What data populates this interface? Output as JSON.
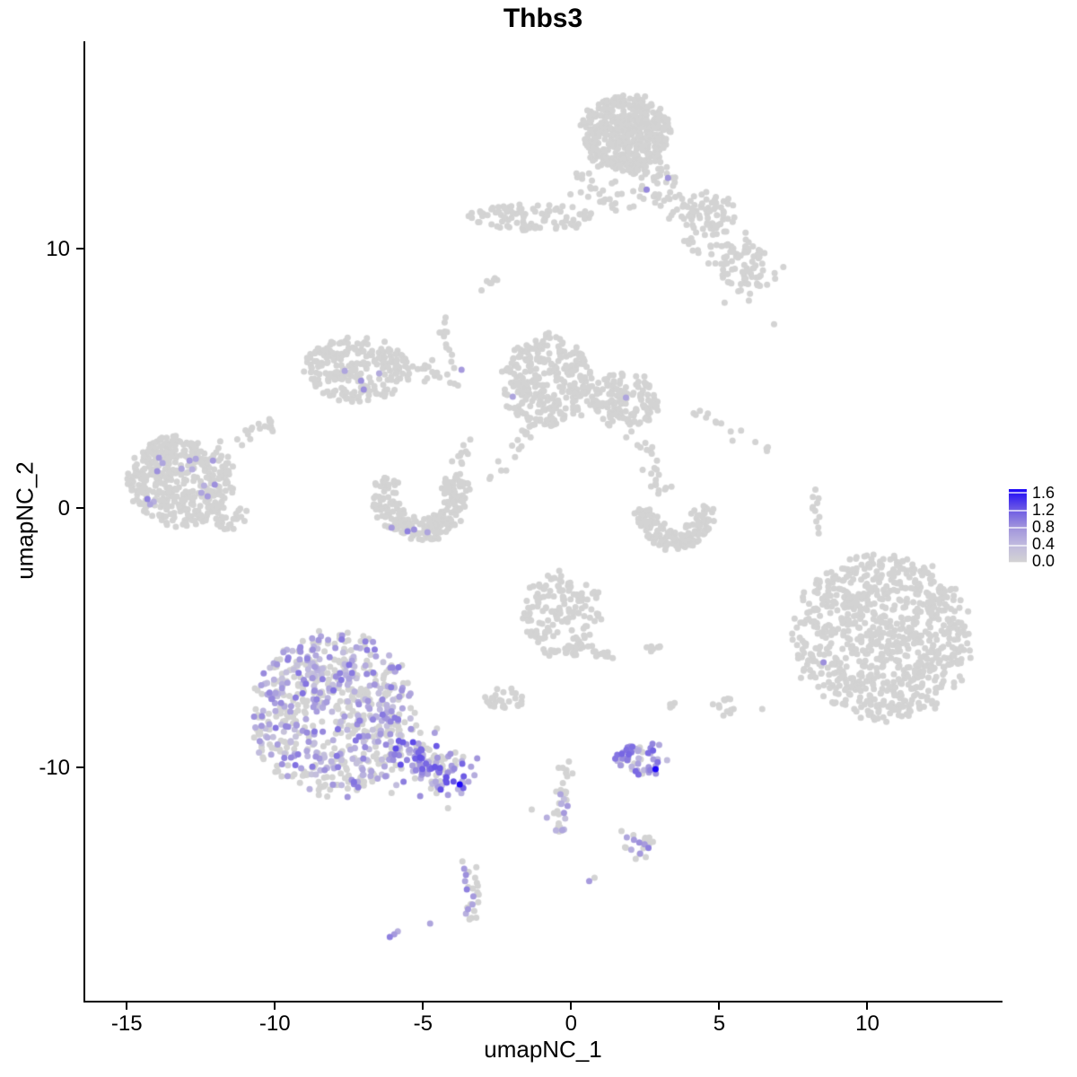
{
  "title": "Thbs3",
  "axes": {
    "x_label": "umapNC_1",
    "y_label": "umapNC_2",
    "x_ticks": [
      -15,
      -10,
      -5,
      0,
      5,
      10
    ],
    "y_ticks": [
      10,
      0,
      -10
    ],
    "x_range": [
      -16.4,
      14.5
    ],
    "y_range": [
      -19.0,
      18.0
    ]
  },
  "legend": {
    "tick_labels": [
      "1.6",
      "1.2",
      "0.8",
      "0.4",
      "0.0"
    ],
    "min": 0.0,
    "max": 1.6
  },
  "colors": {
    "background": "#ffffff",
    "axis": "#000000",
    "point_low": "#d3d3d3",
    "point_high": "#1c06f8",
    "gradient_stops": [
      {
        "t": 0.0,
        "c": "#d3d3d3"
      },
      {
        "t": 0.25,
        "c": "#bfb9de"
      },
      {
        "t": 0.5,
        "c": "#9d90dc"
      },
      {
        "t": 0.75,
        "c": "#6552e6"
      },
      {
        "t": 1.0,
        "c": "#1c06f8"
      }
    ]
  },
  "chart_data": {
    "type": "scatter",
    "title": "Thbs3",
    "xlabel": "umapNC_1",
    "ylabel": "umapNC_2",
    "xlim": [
      -16.4,
      14.5
    ],
    "ylim": [
      -19.0,
      18.0
    ],
    "grid": false,
    "legend_position": "right",
    "color_scale": {
      "min": 0.0,
      "max": 1.6,
      "ticks": [
        0.0,
        0.4,
        0.8,
        1.2,
        1.6
      ],
      "low_color": "#d3d3d3",
      "high_color": "#1c06f8"
    },
    "clusters": [
      {
        "name": "top-main",
        "shape": "ellipse",
        "cx": 1.85,
        "cy": 14.45,
        "rx": 1.45,
        "ry": 1.45,
        "rot": -20,
        "n": 480
      },
      {
        "name": "top-fringe",
        "shape": "ellipse",
        "cx": 1.9,
        "cy": 12.5,
        "rx": 1.9,
        "ry": 1.0,
        "rot": 0,
        "n": 70
      },
      {
        "name": "top-band",
        "shape": "ellipse",
        "cx": -1.35,
        "cy": 11.2,
        "rx": 2.1,
        "ry": 0.5,
        "rot": -4,
        "n": 100
      },
      {
        "name": "top-arm-streak",
        "shape": "streak",
        "x1": 2.5,
        "y1": 12.6,
        "x2": 6.6,
        "y2": 8.5,
        "w": 0.45,
        "n": 70
      },
      {
        "name": "top-arm-lump1",
        "shape": "ellipse",
        "cx": 4.6,
        "cy": 11.3,
        "rx": 1.0,
        "ry": 0.85,
        "rot": 0,
        "n": 55
      },
      {
        "name": "top-arm-lump2",
        "shape": "ellipse",
        "cx": 5.7,
        "cy": 9.4,
        "rx": 0.9,
        "ry": 1.0,
        "rot": 0,
        "n": 55
      },
      {
        "name": "comma-streak",
        "shape": "streak",
        "x1": -3.0,
        "y1": 8.45,
        "x2": -2.5,
        "y2": 8.85,
        "w": 0.12,
        "n": 7
      },
      {
        "name": "mid-left",
        "shape": "ellipse",
        "cx": -7.25,
        "cy": 5.35,
        "rx": 1.75,
        "ry": 1.2,
        "rot": -12,
        "n": 230
      },
      {
        "name": "mid-left-arm",
        "shape": "streak",
        "x1": -6.2,
        "y1": 5.7,
        "x2": -4.1,
        "y2": 5.1,
        "w": 0.18,
        "n": 28
      },
      {
        "name": "vert-streak",
        "shape": "streak",
        "x1": -4.45,
        "y1": 7.4,
        "x2": -3.9,
        "y2": 4.7,
        "w": 0.12,
        "n": 16
      },
      {
        "name": "center",
        "shape": "ellipse",
        "cx": -0.8,
        "cy": 4.9,
        "rx": 1.5,
        "ry": 1.75,
        "rot": 0,
        "n": 300
      },
      {
        "name": "center-lobe",
        "shape": "ellipse",
        "cx": 1.85,
        "cy": 4.15,
        "rx": 1.15,
        "ry": 1.05,
        "rot": 0,
        "n": 140
      },
      {
        "name": "center-conn",
        "shape": "streak",
        "x1": 0.3,
        "y1": 4.6,
        "x2": 0.9,
        "y2": 4.3,
        "w": 0.2,
        "n": 10
      },
      {
        "name": "center-tail-left",
        "shape": "streak",
        "x1": -1.1,
        "y1": 3.4,
        "x2": -2.7,
        "y2": 1.0,
        "w": 0.15,
        "n": 20
      },
      {
        "name": "center-tail-right",
        "shape": "streak",
        "x1": 1.9,
        "y1": 3.1,
        "x2": 3.1,
        "y2": 1.7,
        "w": 0.15,
        "n": 10
      },
      {
        "name": "left",
        "shape": "ellipse",
        "cx": -13.2,
        "cy": 1.0,
        "rx": 1.75,
        "ry": 1.7,
        "rot": -10,
        "n": 380
      },
      {
        "name": "left-arm",
        "shape": "streak",
        "x1": -11.9,
        "y1": 2.1,
        "x2": -10.1,
        "y2": 3.4,
        "w": 0.16,
        "n": 20
      },
      {
        "name": "left-lump",
        "shape": "ellipse",
        "cx": -11.6,
        "cy": -0.3,
        "rx": 0.8,
        "ry": 0.55,
        "rot": 0,
        "n": 30
      },
      {
        "name": "horseshoe",
        "shape": "ring",
        "cx": -5.1,
        "cy": 0.5,
        "rx": 1.6,
        "ry": 1.75,
        "a0": 150,
        "a1": 390,
        "rmin": 0.5,
        "n": 240
      },
      {
        "name": "horseshoe-chain",
        "shape": "streak",
        "x1": -3.9,
        "y1": 1.7,
        "x2": -3.3,
        "y2": 2.9,
        "w": 0.15,
        "n": 10
      },
      {
        "name": "right-crescent",
        "shape": "ring",
        "cx": 3.5,
        "cy": -0.2,
        "rx": 1.3,
        "ry": 1.4,
        "a0": 170,
        "a1": 370,
        "rmin": 0.45,
        "n": 150
      },
      {
        "name": "right-crescent-top",
        "shape": "streak",
        "x1": 2.6,
        "y1": 1.6,
        "x2": 3.2,
        "y2": 0.6,
        "w": 0.18,
        "n": 14
      },
      {
        "name": "diag-streak",
        "shape": "streak",
        "x1": 4.1,
        "y1": 3.7,
        "x2": 6.7,
        "y2": 2.2,
        "w": 0.12,
        "n": 15
      },
      {
        "name": "right-vert-streak",
        "shape": "streak",
        "x1": 8.15,
        "y1": 0.9,
        "x2": 8.35,
        "y2": -1.0,
        "w": 0.08,
        "n": 11
      },
      {
        "name": "far-right",
        "shape": "ellipse",
        "cx": 10.5,
        "cy": -5.0,
        "rx": 2.85,
        "ry": 3.15,
        "rot": 15,
        "n": 850
      },
      {
        "name": "bottom-left",
        "shape": "ellipse",
        "cx": -8.0,
        "cy": -7.9,
        "rx": 2.65,
        "ry": 3.05,
        "rot": 0,
        "n": 680,
        "expr_frac": 0.45,
        "vmin": 0.25,
        "vmax": 1.0
      },
      {
        "name": "bottom-left-tail",
        "shape": "streak",
        "x1": -5.9,
        "y1": -9.3,
        "x2": -3.7,
        "y2": -10.7,
        "w": 0.5,
        "n": 130,
        "expr_frac": 0.7,
        "vmin": 0.35,
        "vmax": 1.25
      },
      {
        "name": "center-lower",
        "shape": "ellipse",
        "cx": -0.3,
        "cy": -4.1,
        "rx": 1.4,
        "ry": 1.6,
        "rot": 0,
        "n": 170
      },
      {
        "name": "center-lower-tail",
        "shape": "streak",
        "x1": 0.5,
        "y1": -5.1,
        "x2": 1.25,
        "y2": -5.9,
        "w": 0.12,
        "n": 10
      },
      {
        "name": "small-blob-a",
        "shape": "ellipse",
        "cx": 2.8,
        "cy": -5.45,
        "rx": 0.28,
        "ry": 0.2,
        "rot": 0,
        "n": 7
      },
      {
        "name": "bits-row",
        "shape": "ellipse",
        "cx": -2.25,
        "cy": -7.35,
        "rx": 0.7,
        "ry": 0.45,
        "rot": 0,
        "n": 30
      },
      {
        "name": "small-blob-b",
        "shape": "ellipse",
        "cx": 3.45,
        "cy": -7.7,
        "rx": 0.25,
        "ry": 0.18,
        "rot": 0,
        "n": 5
      },
      {
        "name": "small-blob-c",
        "shape": "ellipse",
        "cx": 5.15,
        "cy": -7.65,
        "rx": 0.45,
        "ry": 0.38,
        "rot": 0,
        "n": 12
      },
      {
        "name": "purple-small",
        "shape": "ellipse",
        "cx": 2.4,
        "cy": -9.65,
        "rx": 0.9,
        "ry": 0.7,
        "rot": 0,
        "n": 55,
        "expr_frac": 0.8,
        "vmin": 0.35,
        "vmax": 1.1
      },
      {
        "name": "bottom-streak-up",
        "shape": "streak",
        "x1": -0.18,
        "y1": -9.7,
        "x2": -0.33,
        "y2": -11.1,
        "w": 0.12,
        "n": 13
      },
      {
        "name": "bottom-streak-low",
        "shape": "streak",
        "x1": -0.33,
        "y1": -11.1,
        "x2": -0.48,
        "y2": -12.6,
        "w": 0.14,
        "n": 16,
        "expr_frac": 0.5,
        "vmin": 0.3,
        "vmax": 0.8
      },
      {
        "name": "triangle-fringe",
        "shape": "ellipse",
        "cx": 2.3,
        "cy": -13.0,
        "rx": 0.55,
        "ry": 0.45,
        "rot": 0,
        "n": 10
      },
      {
        "name": "bottom-vert-fringe",
        "shape": "streak",
        "x1": -3.45,
        "y1": -13.7,
        "x2": -3.3,
        "y2": -15.9,
        "w": 0.18,
        "n": 12
      }
    ],
    "highlight_points": [
      [
        3.27,
        12.73,
        0.75
      ],
      [
        2.55,
        12.28,
        0.85
      ],
      [
        -7.64,
        5.29,
        0.6
      ],
      [
        -7.09,
        4.91,
        0.8
      ],
      [
        -7.0,
        4.57,
        0.8
      ],
      [
        -6.48,
        5.19,
        0.55
      ],
      [
        -3.7,
        5.33,
        0.7
      ],
      [
        -1.97,
        4.29,
        0.6
      ],
      [
        1.85,
        4.26,
        0.6
      ],
      [
        -13.91,
        1.94,
        0.7
      ],
      [
        -13.79,
        1.73,
        0.6
      ],
      [
        -13.97,
        1.42,
        0.8
      ],
      [
        -13.15,
        1.52,
        0.6
      ],
      [
        -12.88,
        1.83,
        0.7
      ],
      [
        -12.79,
        1.49,
        0.5
      ],
      [
        -12.67,
        1.9,
        0.6
      ],
      [
        -12.09,
        1.83,
        0.7
      ],
      [
        -12.03,
        0.9,
        0.8
      ],
      [
        -12.39,
        0.87,
        0.5
      ],
      [
        -12.48,
        0.59,
        0.6
      ],
      [
        -12.27,
        0.45,
        0.7
      ],
      [
        -14.3,
        0.35,
        0.9
      ],
      [
        -14.21,
        0.14,
        0.6
      ],
      [
        -14.09,
        0.24,
        0.5
      ],
      [
        -6.06,
        -0.76,
        0.7
      ],
      [
        -5.52,
        -0.9,
        0.9
      ],
      [
        -5.3,
        -0.83,
        0.8
      ],
      [
        -4.85,
        -0.93,
        0.6
      ],
      [
        8.52,
        -5.95,
        0.8
      ],
      [
        -3.76,
        -10.66,
        1.6
      ],
      [
        -3.97,
        -10.55,
        1.2
      ],
      [
        -3.64,
        -10.8,
        1.1
      ],
      [
        -4.21,
        -10.38,
        1.2
      ],
      [
        -4.45,
        -10.2,
        1.0
      ],
      [
        2.85,
        -10.07,
        1.6
      ],
      [
        -0.36,
        -11.04,
        0.6
      ],
      [
        -0.12,
        -11.49,
        0.7
      ],
      [
        -0.24,
        -11.76,
        0.7
      ],
      [
        -0.3,
        -12.42,
        0.6
      ],
      [
        -0.82,
        -11.94,
        0.5
      ],
      [
        -1.33,
        -11.63,
        0.0
      ],
      [
        1.88,
        -12.7,
        0.6
      ],
      [
        2.12,
        -12.8,
        0.7
      ],
      [
        2.3,
        -12.9,
        0.8
      ],
      [
        2.48,
        -12.97,
        0.7
      ],
      [
        2.61,
        -13.11,
        0.9
      ],
      [
        2.33,
        -13.32,
        0.7
      ],
      [
        2.03,
        -13.18,
        0.5
      ],
      [
        1.82,
        -13.08,
        0.0
      ],
      [
        2.76,
        -12.87,
        0.0
      ],
      [
        2.52,
        -13.46,
        0.0
      ],
      [
        2.18,
        -13.53,
        0.0
      ],
      [
        1.7,
        -12.46,
        0.0
      ],
      [
        -3.61,
        -13.91,
        0.7
      ],
      [
        -3.55,
        -14.15,
        0.8
      ],
      [
        -3.58,
        -14.39,
        0.6
      ],
      [
        -3.52,
        -14.71,
        0.9
      ],
      [
        -3.3,
        -14.98,
        0.7
      ],
      [
        -3.33,
        -15.29,
        0.6
      ],
      [
        -3.48,
        -15.47,
        0.7
      ],
      [
        -3.55,
        -15.64,
        0.5
      ],
      [
        -3.24,
        -14.26,
        0.0
      ],
      [
        -3.15,
        -14.57,
        0.0
      ],
      [
        -3.12,
        -14.91,
        0.0
      ],
      [
        -3.27,
        -15.54,
        0.0
      ],
      [
        -3.42,
        -15.85,
        0.0
      ],
      [
        -3.67,
        -13.63,
        0.0
      ],
      [
        -4.76,
        -16.02,
        0.6
      ],
      [
        -6.12,
        -16.54,
        0.9
      ],
      [
        -5.97,
        -16.44,
        0.7
      ],
      [
        -5.85,
        -16.33,
        0.5
      ],
      [
        0.61,
        -14.39,
        0.7
      ],
      [
        0.79,
        -14.26,
        0.0
      ],
      [
        5.18,
        7.92,
        0.0
      ],
      [
        6.85,
        7.09,
        0.0
      ],
      [
        6.45,
        -7.75,
        0.0
      ]
    ]
  }
}
